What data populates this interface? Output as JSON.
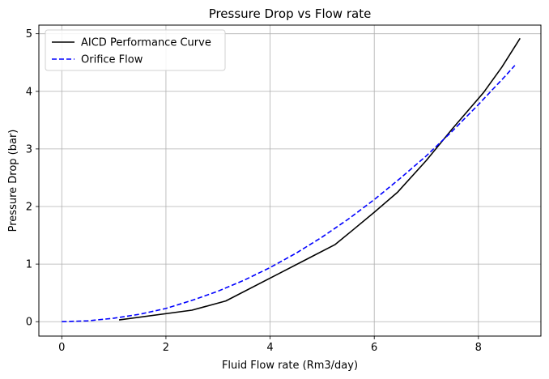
{
  "chart_data": {
    "type": "line",
    "title": "Pressure Drop vs Flow rate",
    "xlabel": "Fluid Flow rate (Rm3/day)",
    "ylabel": "Pressure Drop (bar)",
    "xlim": [
      -0.44,
      9.2
    ],
    "ylim": [
      -0.25,
      5.15
    ],
    "xticks": [
      0,
      2,
      4,
      6,
      8
    ],
    "yticks": [
      0,
      1,
      2,
      3,
      4,
      5
    ],
    "grid": true,
    "legend_position": "top-left",
    "series": [
      {
        "name": "AICD Performance Curve",
        "color": "#000000",
        "style": "solid",
        "x": [
          1.1,
          2.5,
          3.15,
          4.2,
          5.25,
          5.6,
          6.0,
          6.45,
          7.0,
          7.5,
          8.1,
          8.45,
          8.8
        ],
        "y": [
          0.03,
          0.2,
          0.36,
          0.85,
          1.34,
          1.6,
          1.9,
          2.25,
          2.8,
          3.35,
          3.98,
          4.42,
          4.92
        ]
      },
      {
        "name": "Orifice Flow",
        "color": "#0000ff",
        "style": "dashed",
        "x": [
          0,
          0.5,
          1.0,
          1.5,
          2.0,
          2.5,
          3.0,
          3.5,
          4.0,
          4.5,
          5.0,
          5.5,
          6.0,
          6.5,
          7.0,
          7.5,
          8.0,
          8.5,
          8.7
        ],
        "y": [
          0,
          0.015,
          0.06,
          0.13,
          0.23,
          0.37,
          0.53,
          0.72,
          0.94,
          1.19,
          1.47,
          1.78,
          2.12,
          2.49,
          2.88,
          3.31,
          3.77,
          4.25,
          4.45
        ]
      }
    ]
  }
}
